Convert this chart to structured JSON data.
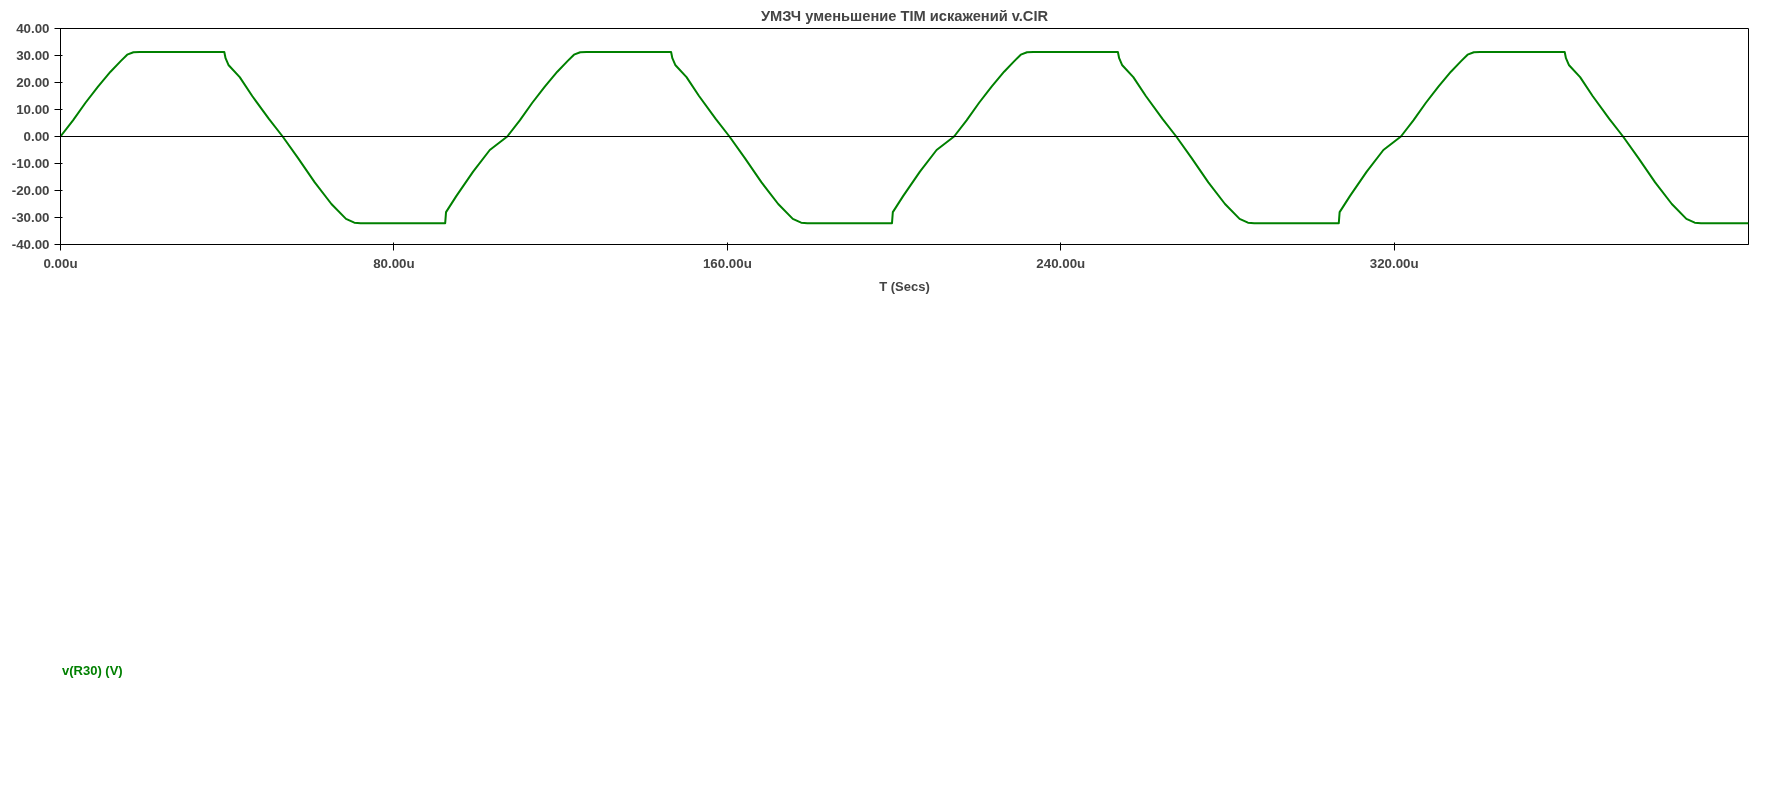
{
  "chart_data": {
    "type": "line",
    "title": "УМЗЧ уменьшение TIM искажений v.CIR",
    "xlabel": "T (Secs)",
    "xlim": [
      0,
      405
    ],
    "ylim": [
      -40,
      40
    ],
    "xticks": [
      {
        "value": 0,
        "label": "0.00u"
      },
      {
        "value": 80,
        "label": "80.00u"
      },
      {
        "value": 160,
        "label": "160.00u"
      },
      {
        "value": 240,
        "label": "240.00u"
      },
      {
        "value": 320,
        "label": "320.00u"
      }
    ],
    "yticks": [
      {
        "value": -40,
        "label": "-40.00"
      },
      {
        "value": -30,
        "label": "-30.00"
      },
      {
        "value": -20,
        "label": "-20.00"
      },
      {
        "value": -10,
        "label": "-10.00"
      },
      {
        "value": 0,
        "label": "0.00"
      },
      {
        "value": 10,
        "label": "10.00"
      },
      {
        "value": 20,
        "label": "20.00"
      },
      {
        "value": 30,
        "label": "30.00"
      },
      {
        "value": 40,
        "label": "40.00"
      }
    ],
    "grid": false,
    "legend": "bottom left",
    "marker": "none",
    "line_style": "solid",
    "ref_lines": [
      {
        "axis": "y",
        "value": 0,
        "color": "#000000"
      }
    ],
    "series": [
      {
        "name": "v(R30) (V)",
        "color": "#008000",
        "x": [
          0,
          3,
          6,
          9,
          12,
          14.5,
          16,
          17.5,
          19,
          39.3,
          39.6,
          40.3,
          43,
          46,
          50,
          53.3,
          57,
          61,
          65,
          68.5,
          70.5,
          72,
          92.3,
          92.5,
          95,
          99,
          103,
          107.2,
          110.2,
          113.2,
          116.2,
          119.2,
          121.7,
          123.2,
          124.7,
          126.2,
          146.5,
          146.8,
          147.5,
          150.2,
          153.2,
          157.2,
          160.5,
          164.2,
          168.2,
          172.2,
          175.7,
          177.7,
          179.2,
          199.5,
          199.7,
          202.2,
          206.2,
          210.2,
          214.4,
          217.4,
          220.4,
          223.4,
          226.4,
          228.9,
          230.4,
          231.9,
          233.4,
          253.7,
          254.0,
          254.7,
          257.4,
          260.4,
          264.4,
          267.7,
          271.4,
          275.4,
          279.4,
          282.9,
          284.9,
          286.4,
          306.7,
          306.9,
          309.4,
          313.4,
          317.4,
          321.6,
          324.6,
          327.6,
          330.6,
          333.6,
          336.1,
          337.6,
          339.1,
          340.6,
          360.9,
          361.2,
          361.9,
          364.6,
          367.6,
          371.6,
          374.9,
          378.6,
          382.6,
          386.6,
          390.1,
          392.1,
          393.6,
          405
        ],
        "values": [
          0,
          6,
          12.5,
          18.5,
          24,
          28,
          30.3,
          31.2,
          31.3,
          31.3,
          29,
          26.5,
          22,
          15,
          6.5,
          0,
          -8,
          -17,
          -25,
          -30.5,
          -31.9,
          -32.1,
          -32.1,
          -28,
          -22,
          -13,
          -5,
          0,
          6,
          12.5,
          18.5,
          24,
          28,
          30.3,
          31.2,
          31.3,
          31.3,
          29,
          26.5,
          22,
          15,
          6.5,
          0,
          -8,
          -17,
          -25,
          -30.5,
          -31.9,
          -32.1,
          -32.1,
          -28,
          -22,
          -13,
          -5,
          0,
          6,
          12.5,
          18.5,
          24,
          28,
          30.3,
          31.2,
          31.3,
          31.3,
          29,
          26.5,
          22,
          15,
          6.5,
          0,
          -8,
          -17,
          -25,
          -30.5,
          -31.9,
          -32.1,
          -32.1,
          -28,
          -22,
          -13,
          -5,
          0,
          6,
          12.5,
          18.5,
          24,
          28,
          30.3,
          31.2,
          31.3,
          31.3,
          29,
          26.5,
          22,
          15,
          6.5,
          0,
          -8,
          -17,
          -25,
          -30.5,
          -31.9,
          -32.1,
          -32.1
        ]
      }
    ]
  }
}
